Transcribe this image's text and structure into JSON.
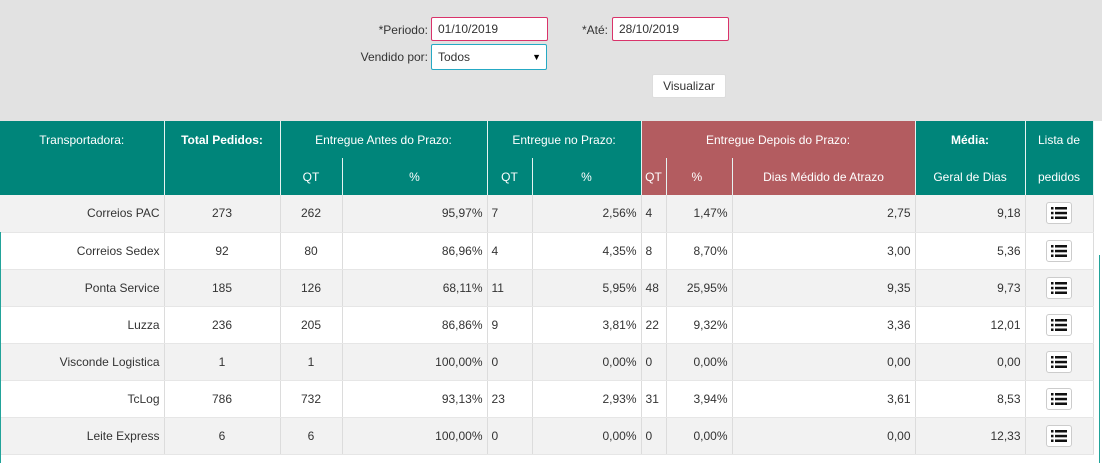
{
  "filters": {
    "periodo_label": "*Periodo:",
    "periodo_value": "01/10/2019",
    "ate_label": "*Até:",
    "ate_value": "28/10/2019",
    "vendido_label": "Vendido por:",
    "vendido_value": "Todos",
    "visualizar_label": "Visualizar"
  },
  "table": {
    "headers": {
      "transportadora": "Transportadora:",
      "total": "Total Pedidos:",
      "antes": "Entregue Antes do Prazo:",
      "no_prazo": "Entregue no Prazo:",
      "depois": "Entregue Depois do Prazo:",
      "media": "Média:",
      "lista": "Lista de",
      "qt": "QT",
      "pct": "%",
      "dias_medio": "Dias Médido de Atrazo",
      "geral_dias": "Geral de Dias",
      "pedidos": "pedidos"
    },
    "rows": [
      {
        "name": "Correios PAC",
        "total": "273",
        "antes_qt": "262",
        "antes_pct": "95,97%",
        "no_qt": "7",
        "no_pct": "2,56%",
        "dep_qt": "4",
        "dep_pct": "1,47%",
        "dias": "2,75",
        "media": "9,18"
      },
      {
        "name": "Correios Sedex",
        "total": "92",
        "antes_qt": "80",
        "antes_pct": "86,96%",
        "no_qt": "4",
        "no_pct": "4,35%",
        "dep_qt": "8",
        "dep_pct": "8,70%",
        "dias": "3,00",
        "media": "5,36"
      },
      {
        "name": "Ponta Service",
        "total": "185",
        "antes_qt": "126",
        "antes_pct": "68,11%",
        "no_qt": "11",
        "no_pct": "5,95%",
        "dep_qt": "48",
        "dep_pct": "25,95%",
        "dias": "9,35",
        "media": "9,73"
      },
      {
        "name": "Luzza",
        "total": "236",
        "antes_qt": "205",
        "antes_pct": "86,86%",
        "no_qt": "9",
        "no_pct": "3,81%",
        "dep_qt": "22",
        "dep_pct": "9,32%",
        "dias": "3,36",
        "media": "12,01"
      },
      {
        "name": "Visconde Logistica",
        "total": "1",
        "antes_qt": "1",
        "antes_pct": "100,00%",
        "no_qt": "0",
        "no_pct": "0,00%",
        "dep_qt": "0",
        "dep_pct": "0,00%",
        "dias": "0,00",
        "media": "0,00"
      },
      {
        "name": "TcLog",
        "total": "786",
        "antes_qt": "732",
        "antes_pct": "93,13%",
        "no_qt": "23",
        "no_pct": "2,93%",
        "dep_qt": "31",
        "dep_pct": "3,94%",
        "dias": "3,61",
        "media": "8,53"
      },
      {
        "name": "Leite Express",
        "total": "6",
        "antes_qt": "6",
        "antes_pct": "100,00%",
        "no_qt": "0",
        "no_pct": "0,00%",
        "dep_qt": "0",
        "dep_pct": "0,00%",
        "dias": "0,00",
        "media": "12,33"
      }
    ]
  },
  "icons": {
    "list": "list-icon",
    "dropdown": "dropdown-arrow-icon"
  },
  "colors": {
    "header_green": "#00857a",
    "header_red": "#b35c60",
    "input_border": "#d9336a",
    "select_border": "#25a9c4"
  }
}
